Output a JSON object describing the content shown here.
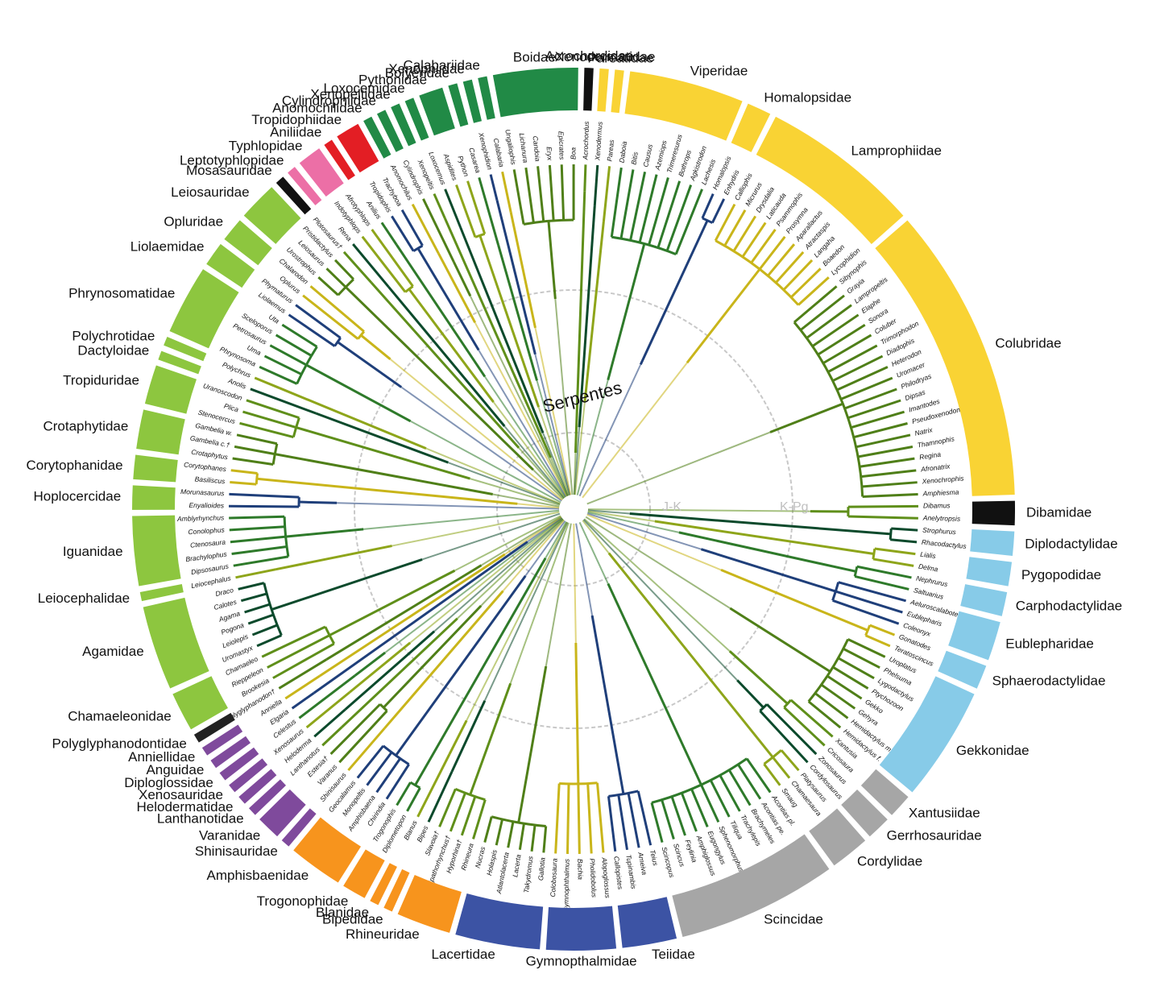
{
  "labels": {
    "clade": "Serpentes",
    "jk": "J-K",
    "kpg": "K-Pg"
  },
  "families": [
    {
      "name": "Acrochordidae",
      "color": "#111111",
      "genera": [
        "Acrochordus"
      ]
    },
    {
      "name": "Xenodermatidae",
      "color": "#f9d334",
      "genera": [
        "Xenodermus"
      ]
    },
    {
      "name": "Pareatidae",
      "color": "#f9d334",
      "genera": [
        "Pareas"
      ]
    },
    {
      "name": "Viperidae",
      "color": "#f9d334",
      "genera": [
        "Daboia",
        "Bitis",
        "Causus",
        "Azemiops",
        "Trimeresurus",
        "Bothrops",
        "Agkistrodon",
        "Lachesis"
      ]
    },
    {
      "name": "Homalopsidae",
      "color": "#f9d334",
      "genera": [
        "Homalopsis",
        "Enhydris"
      ]
    },
    {
      "name": "Lamprophiidae",
      "color": "#f9d334",
      "genera": [
        "Calliophis",
        "Micrurus",
        "Drysdalia",
        "Laticauda",
        "Psammophis",
        "Prosymna",
        "Aparallactus",
        "Atractaspis",
        "Langaha",
        "Boaedon",
        "Lycophidion"
      ]
    },
    {
      "name": "Colubridae",
      "color": "#f9d334",
      "genera": [
        "Sibynophis",
        "Grayia",
        "Lampropeltis",
        "Elaphe",
        "Sonora",
        "Coluber",
        "Trimorphodon",
        "Diadophis",
        "Heterodon",
        "Uromacer",
        "Philodryas",
        "Dipsas",
        "Imantodes",
        "Pseudoxenodon",
        "Natrix",
        "Thamnophis",
        "Regina",
        "Afronatrix",
        "Xenochrophis",
        "Amphiesma"
      ]
    },
    {
      "name": "Dibamidae",
      "color": "#111111",
      "genera": [
        "Dibamus",
        "Anelytropsis"
      ]
    },
    {
      "name": "Diplodactylidae",
      "color": "#87cbe8",
      "genera": [
        "Strophurus",
        "Rhacodactylus"
      ]
    },
    {
      "name": "Pygopodidae",
      "color": "#87cbe8",
      "genera": [
        "Lialis",
        "Delma"
      ]
    },
    {
      "name": "Carphodactylidae",
      "color": "#87cbe8",
      "genera": [
        "Nephrurus",
        "Saltuarius"
      ]
    },
    {
      "name": "Eublepharidae",
      "color": "#87cbe8",
      "genera": [
        "Aeluroscalabotes",
        "Eublepharis",
        "Coleonyx"
      ]
    },
    {
      "name": "Sphaerodactylidae",
      "color": "#87cbe8",
      "genera": [
        "Gonatodes",
        "Teratoscincus"
      ]
    },
    {
      "name": "Gekkonidae",
      "color": "#87cbe8",
      "genera": [
        "Uroplatus",
        "Phelsuma",
        "Lygodactylus",
        "Ptychozoon",
        "Gekko",
        "Gehyra",
        "Hemidactylus m.",
        "Hemidactylus f."
      ]
    },
    {
      "name": "Xantusiidae",
      "color": "#a6a6a6",
      "genera": [
        "Xantusia",
        "Cricosaura"
      ]
    },
    {
      "name": "Gerrhosauridae",
      "color": "#a6a6a6",
      "genera": [
        "Zonosaurus",
        "Cordylosaurus"
      ]
    },
    {
      "name": "Cordylidae",
      "color": "#a6a6a6",
      "genera": [
        "Platysaurus",
        "Chamaesaura",
        "Smaug"
      ]
    },
    {
      "name": "Scincidae",
      "color": "#a6a6a6",
      "genera": [
        "Acontias pl.",
        "Acontias pe.",
        "Brachymeles",
        "Trachylepis",
        "Tiliqua",
        "Sphenomorphus",
        "Eugongylus",
        "Amphiglossus",
        "Feylinia",
        "Scincus",
        "Scincopus"
      ]
    },
    {
      "name": "Teiidae",
      "color": "#3c53a4",
      "genera": [
        "Teius",
        "Ameiva",
        "Tupinambis",
        "Callopistes"
      ]
    },
    {
      "name": "Gymnopthalmidae",
      "color": "#3c53a4",
      "genera": [
        "Alopoglossus",
        "Pholidobolus",
        "Bachia",
        "Gymnophthalmus",
        "Colobosaura"
      ]
    },
    {
      "name": "Lacertidae",
      "color": "#3c53a4",
      "genera": [
        "Gallotia",
        "Takydromus",
        "Lacerta",
        "Atlantolacerta",
        "Holaspis",
        "Nucras"
      ]
    },
    {
      "name": "Rhineuridae",
      "color": "#f7941d",
      "genera": [
        "Rhineura",
        "Hyporhina†",
        "Spathorhynchus†",
        "Slavoia†"
      ]
    },
    {
      "name": "Bipedidae",
      "color": "#f7941d",
      "genera": [
        "Bipes"
      ]
    },
    {
      "name": "Blanidae",
      "color": "#f7941d",
      "genera": [
        "Blanus"
      ]
    },
    {
      "name": "Trogonophidae",
      "color": "#f7941d",
      "genera": [
        "Diplometopon",
        "Trogonophis"
      ]
    },
    {
      "name": "Amphisbaenidae",
      "color": "#f7941d",
      "genera": [
        "Chirindia",
        "Amphisbaena",
        "Monopeltis",
        "Geocalamus"
      ]
    },
    {
      "name": "Shinisauridae",
      "color": "#7f4a9c",
      "genera": [
        "Shinisaurus"
      ]
    },
    {
      "name": "Varanidae",
      "color": "#7f4a9c",
      "genera": [
        "Varanus",
        "Estesia†"
      ]
    },
    {
      "name": "Lanthanotidae",
      "color": "#7f4a9c",
      "genera": [
        "Lanthanotus"
      ]
    },
    {
      "name": "Helodermatidae",
      "color": "#7f4a9c",
      "genera": [
        "Heloderma"
      ]
    },
    {
      "name": "Xenosauridae",
      "color": "#7f4a9c",
      "genera": [
        "Xenosaurus"
      ]
    },
    {
      "name": "Diploglossidae",
      "color": "#7f4a9c",
      "genera": [
        "Celestus"
      ]
    },
    {
      "name": "Anguidae",
      "color": "#7f4a9c",
      "genera": [
        "Elgaria"
      ]
    },
    {
      "name": "Anniellidae",
      "color": "#7f4a9c",
      "genera": [
        "Anniella"
      ]
    },
    {
      "name": "Polyglyphanodontidae",
      "color": "#222222",
      "genera": [
        "Polyglyphanodon†"
      ]
    },
    {
      "name": "Chamaeleonidae",
      "color": "#8dc63f",
      "genera": [
        "Brookesia",
        "Rieppeleon",
        "Chamaeleo"
      ]
    },
    {
      "name": "Agamidae",
      "color": "#8dc63f",
      "genera": [
        "Uromastyx",
        "Leiolepis",
        "Pogona",
        "Agama",
        "Calotes",
        "Draco"
      ]
    },
    {
      "name": "Leiocephalidae",
      "color": "#8dc63f",
      "genera": [
        "Leiocephalus"
      ]
    },
    {
      "name": "Iguanidae",
      "color": "#8dc63f",
      "genera": [
        "Dipsosaurus",
        "Brachylophus",
        "Ctenosaura",
        "Conolophus",
        "Amblyrhynchus"
      ]
    },
    {
      "name": "Hoplocercidae",
      "color": "#8dc63f",
      "genera": [
        "Enyalioides",
        "Morunasaurus"
      ]
    },
    {
      "name": "Corytophanidae",
      "color": "#8dc63f",
      "genera": [
        "Basiliscus",
        "Corytophanes"
      ]
    },
    {
      "name": "Crotaphytidae",
      "color": "#8dc63f",
      "genera": [
        "Crotaphytus",
        "Gambelia c.†",
        "Gambelia w."
      ]
    },
    {
      "name": "Tropiduridae",
      "color": "#8dc63f",
      "genera": [
        "Stenocercus",
        "Plica",
        "Uranoscodon"
      ]
    },
    {
      "name": "Dactyloidae",
      "color": "#8dc63f",
      "genera": [
        "Anolis"
      ]
    },
    {
      "name": "Polychrotidae",
      "color": "#8dc63f",
      "genera": [
        "Polychrus"
      ]
    },
    {
      "name": "Phrynosomatidae",
      "color": "#8dc63f",
      "genera": [
        "Phrynosoma",
        "Uma",
        "Petrosaurus",
        "Sceloporus",
        "Uta"
      ]
    },
    {
      "name": "Liolaemidae",
      "color": "#8dc63f",
      "genera": [
        "Liolaemus",
        "Phymaturus"
      ]
    },
    {
      "name": "Opluridae",
      "color": "#8dc63f",
      "genera": [
        "Oplurus",
        "Chalarodon"
      ]
    },
    {
      "name": "Leiosauridae",
      "color": "#8dc63f",
      "genera": [
        "Urostrophus",
        "Leiosaurus",
        "Pristidactylus"
      ]
    },
    {
      "name": "Mosasauridae",
      "color": "#111111",
      "genera": [
        "Plotosaurus†"
      ]
    },
    {
      "name": "Leptotyphlopidae",
      "color": "#ec6fa6",
      "genera": [
        "Rena"
      ]
    },
    {
      "name": "Typhlopidae",
      "color": "#ec6fa6",
      "genera": [
        "Indotyphlops",
        "Afrotyphlops"
      ]
    },
    {
      "name": "Aniliidae",
      "color": "#e31e24",
      "genera": [
        "Anilius"
      ]
    },
    {
      "name": "Tropidophiidae",
      "color": "#e31e24",
      "genera": [
        "Tropidophis",
        "Trachyboa"
      ]
    },
    {
      "name": "Anomochilidae",
      "color": "#218a46",
      "genera": [
        "Anomochilus"
      ]
    },
    {
      "name": "Cylindrophiidae",
      "color": "#218a46",
      "genera": [
        "Cylindrophis"
      ]
    },
    {
      "name": "Xenopeltidae",
      "color": "#218a46",
      "genera": [
        "Xenopeltis"
      ]
    },
    {
      "name": "Loxocemidae",
      "color": "#218a46",
      "genera": [
        "Loxocemus"
      ]
    },
    {
      "name": "Pythonidae",
      "color": "#218a46",
      "genera": [
        "Aspidites",
        "Python"
      ]
    },
    {
      "name": "Bolyeridae",
      "color": "#218a46",
      "genera": [
        "Casarea"
      ]
    },
    {
      "name": "Xenophiidae",
      "color": "#218a46",
      "genera": [
        "Xenophidion"
      ]
    },
    {
      "name": "Calabariidae",
      "color": "#218a46",
      "genera": [
        "Calabaria"
      ]
    },
    {
      "name": "Boidae",
      "color": "#218a46",
      "genera": [
        "Ungaliophis",
        "Lichanura",
        "Candoia",
        "Eryx",
        "Epicrates",
        "Boa"
      ]
    }
  ]
}
